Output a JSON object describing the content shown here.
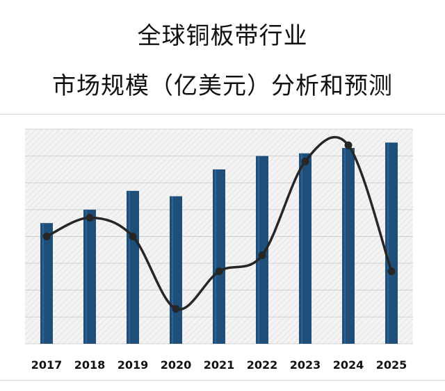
{
  "title_line1": "全球铜板带行业",
  "title_line2": "市场规模（亿美元）分析和预测",
  "chart_data": {
    "type": "bar+line",
    "categories": [
      "2017",
      "2018",
      "2019",
      "2020",
      "2021",
      "2022",
      "2023",
      "2024",
      "2025"
    ],
    "bar_values": [
      45,
      50,
      57,
      55,
      65,
      70,
      71,
      73,
      75
    ],
    "line_values": [
      40,
      47,
      40,
      13,
      27,
      33,
      68,
      74,
      27
    ],
    "ylim": [
      0,
      80
    ],
    "grid": true,
    "colors": {
      "bar": "#1f4e79",
      "line": "#262626",
      "marker": "#262626",
      "plot_bg": "#f2f2f2",
      "grid": "#d0d0d0"
    }
  }
}
